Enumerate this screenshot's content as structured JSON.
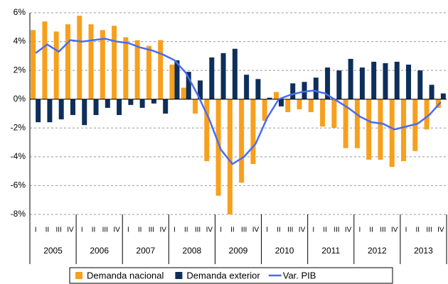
{
  "chart_data": {
    "type": "bar-line",
    "categories": [
      "I",
      "II",
      "III",
      "IV",
      "I",
      "II",
      "III",
      "IV",
      "I",
      "II",
      "III",
      "IV",
      "I",
      "II",
      "III",
      "IV",
      "I",
      "II",
      "III",
      "IV",
      "I",
      "II",
      "III",
      "IV",
      "I",
      "II",
      "III",
      "IV",
      "I",
      "II",
      "III",
      "IV",
      "I",
      "II",
      "III",
      "IV"
    ],
    "groups": [
      "2005",
      "2006",
      "2007",
      "2008",
      "2009",
      "2010",
      "2011",
      "2012",
      "2013"
    ],
    "series": [
      {
        "name": "Demanda nacional",
        "type": "bar",
        "color": "#f7a01d",
        "values": [
          4.8,
          5.4,
          4.7,
          5.2,
          5.8,
          5.2,
          4.8,
          5.1,
          4.3,
          4.1,
          3.7,
          4.1,
          2.4,
          0.8,
          -1.0,
          -4.3,
          -6.7,
          -8.0,
          -5.8,
          -4.5,
          -1.5,
          0.5,
          -0.9,
          -0.7,
          -0.9,
          -1.9,
          -2.0,
          -3.4,
          -3.4,
          -4.2,
          -4.2,
          -4.7,
          -4.3,
          -3.6,
          -2.1,
          -0.6
        ]
      },
      {
        "name": "Demanda exterior",
        "type": "bar",
        "color": "#0e2f5a",
        "values": [
          -1.6,
          -1.6,
          -1.4,
          -1.1,
          -1.8,
          -1.1,
          -0.6,
          -1.1,
          -0.4,
          -0.6,
          -0.3,
          -1.0,
          2.7,
          1.9,
          1.3,
          2.9,
          3.2,
          3.5,
          1.7,
          1.4,
          0.1,
          -0.5,
          1.1,
          1.2,
          1.5,
          2.2,
          2.0,
          2.8,
          2.2,
          2.6,
          2.5,
          2.6,
          2.4,
          2.0,
          1.0,
          0.4
        ]
      },
      {
        "name": "Var. PIB",
        "type": "line",
        "color": "#4a6cf0",
        "values": [
          3.2,
          3.8,
          3.3,
          4.1,
          4.0,
          4.1,
          4.2,
          4.0,
          3.9,
          3.6,
          3.4,
          3.1,
          2.7,
          1.8,
          0.3,
          -1.4,
          -3.5,
          -4.5,
          -4.0,
          -3.1,
          -1.3,
          0.0,
          0.3,
          0.5,
          0.6,
          0.4,
          -0.1,
          -0.6,
          -1.2,
          -1.6,
          -1.7,
          -2.1,
          -1.9,
          -1.7,
          -1.1,
          -0.2
        ]
      }
    ],
    "ylim": [
      -8,
      6
    ],
    "yticks": [
      {
        "value": -8,
        "label": "-8%"
      },
      {
        "value": -6,
        "label": "-6%"
      },
      {
        "value": -4,
        "label": "-4%"
      },
      {
        "value": -2,
        "label": "-2%"
      },
      {
        "value": 0,
        "label": "0%"
      },
      {
        "value": 2,
        "label": "2%"
      },
      {
        "value": 4,
        "label": "4%"
      },
      {
        "value": 6,
        "label": "6%"
      }
    ],
    "grid": true,
    "legend": "bottom"
  }
}
